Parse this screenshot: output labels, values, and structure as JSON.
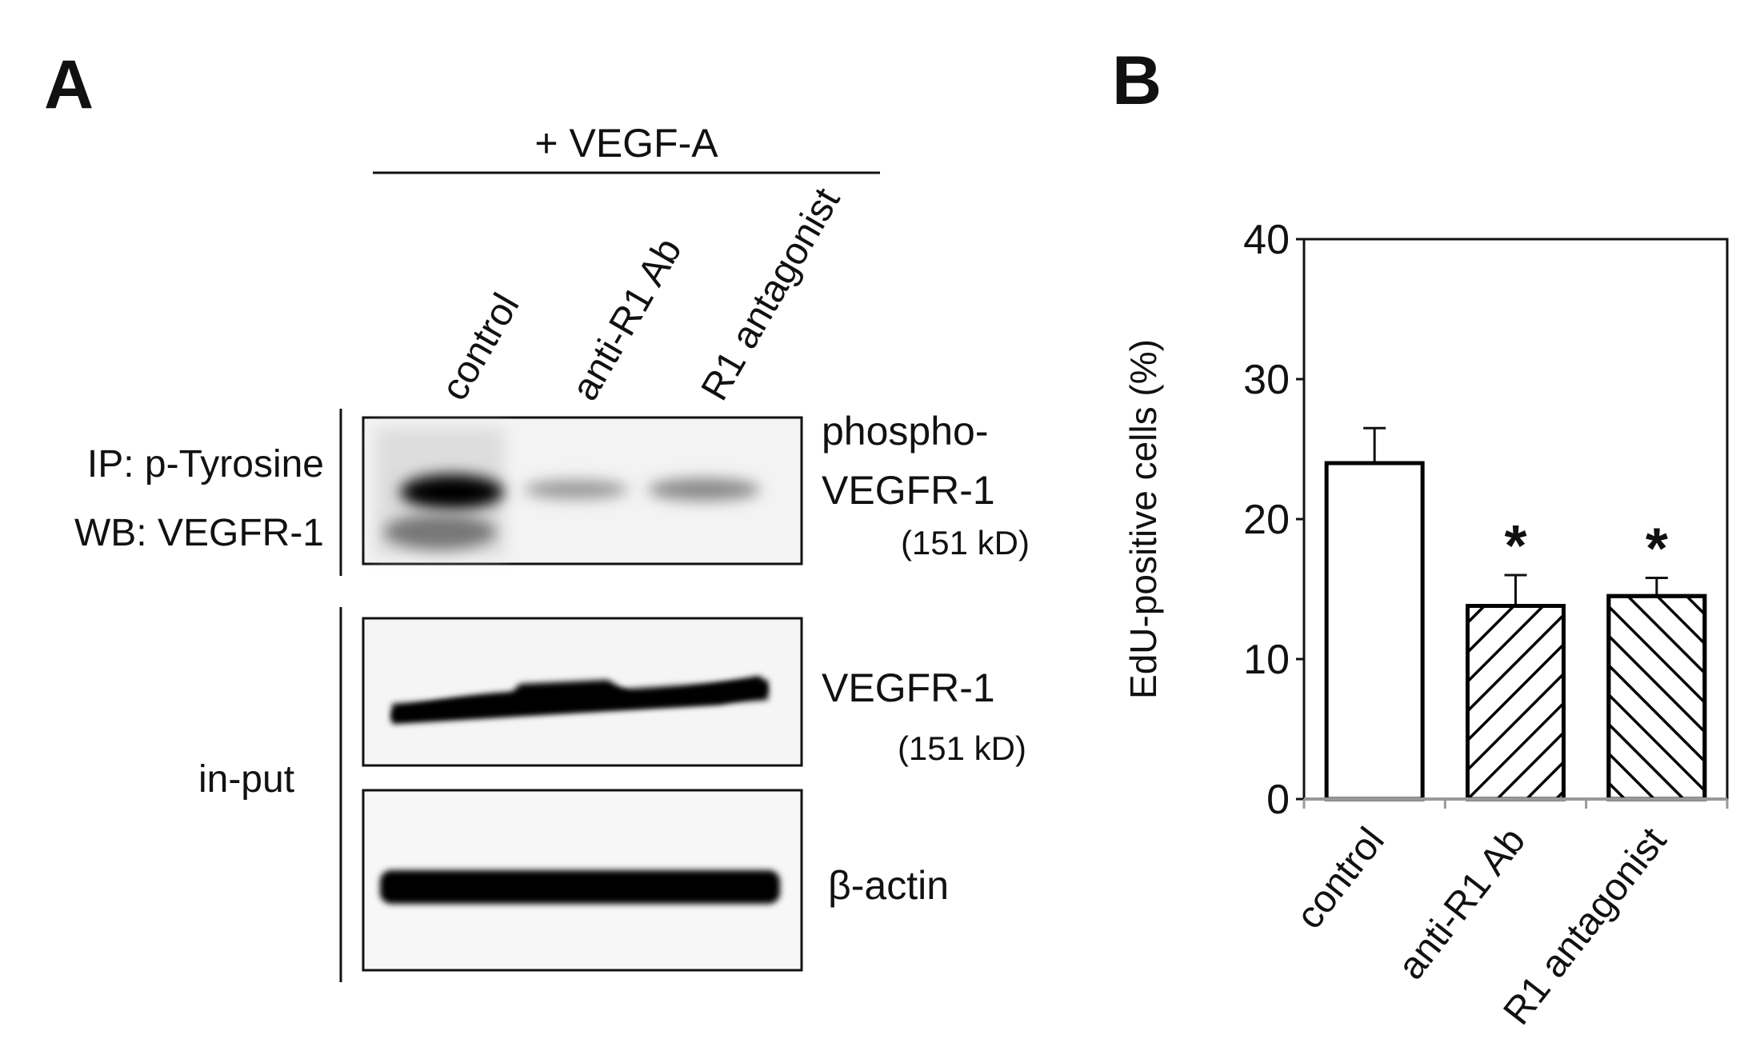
{
  "panel_a": {
    "label": "A",
    "treatment": "+ VEGF-A",
    "lanes": [
      "control",
      "anti-R1 Ab",
      "R1 antagonist"
    ],
    "ip_label": "IP: p-Tyrosine",
    "wb_label": "WB: VEGFR-1",
    "input_label": "in-put",
    "blots": [
      {
        "lines": [
          "phospho-",
          "VEGFR-1"
        ],
        "size": "(151 kD)"
      },
      {
        "lines": [
          "VEGFR-1"
        ],
        "size": "(151 kD)"
      },
      {
        "lines": [
          "β-actin"
        ]
      }
    ]
  },
  "chart_data": {
    "type": "bar",
    "label": "B",
    "ylabel": "EdU-positive cells (%)",
    "categories": [
      "control",
      "anti-R1 Ab",
      "R1 antagonist"
    ],
    "values": [
      24,
      13.8,
      14.5
    ],
    "errors": [
      2.5,
      2.2,
      1.3
    ],
    "annotations": [
      {
        "category": "anti-R1 Ab",
        "text": "*"
      },
      {
        "category": "R1 antagonist",
        "text": "*"
      }
    ],
    "color": "#ffffff",
    "edgecolor": "#000000",
    "patterns": [
      "none",
      "backslash",
      "slash"
    ],
    "ylim": [
      0,
      40
    ],
    "yticks": [
      0,
      10,
      20,
      30,
      40
    ],
    "grid": false
  }
}
